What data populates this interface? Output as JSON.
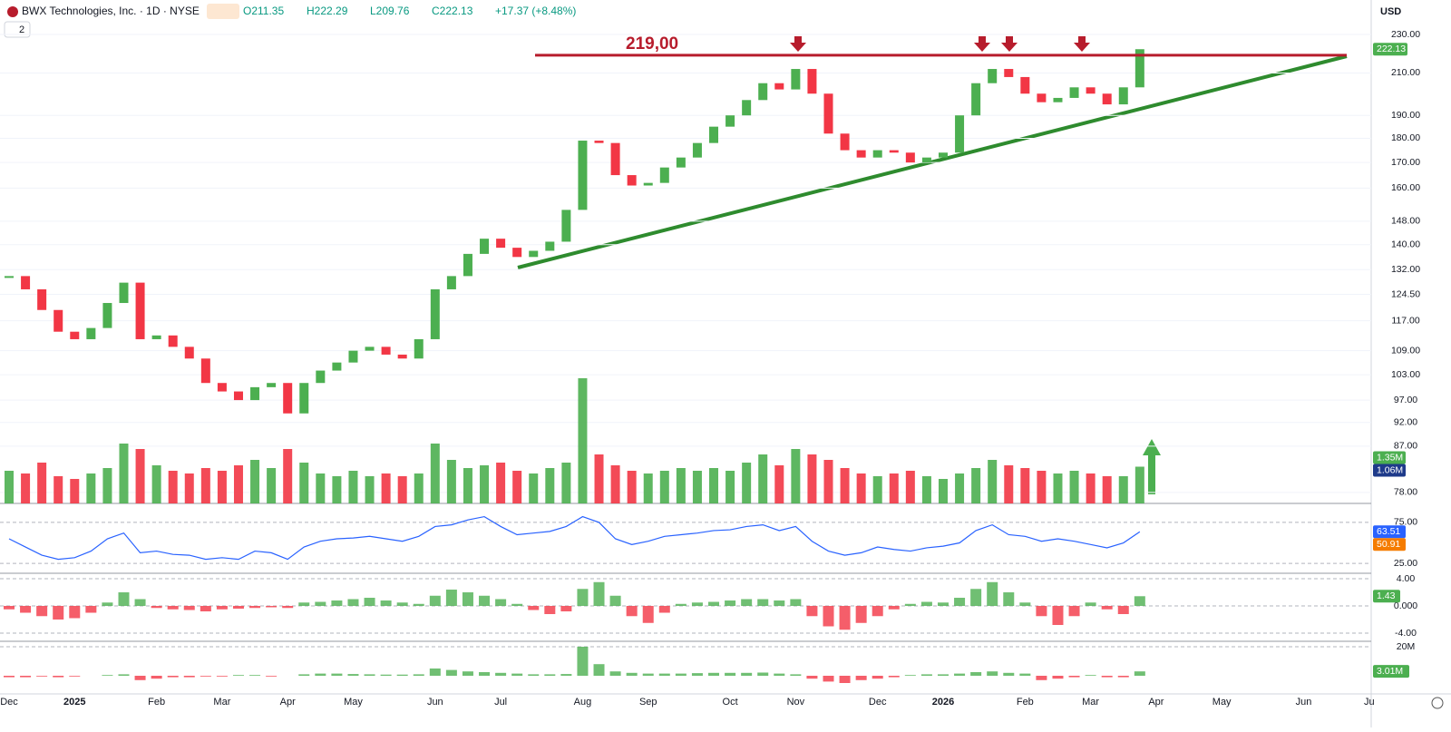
{
  "header": {
    "title": "BWX Technologies, Inc. · 1D · NYSE",
    "ohlc": [
      "O211.35",
      "H222.29",
      "L209.76",
      "C222.13",
      "+17.37 (+8.48%)"
    ],
    "indicators": "2",
    "currency": "USD"
  },
  "chart_data": [
    {
      "type": "candlestick",
      "log": true,
      "up_color": "#4caf50",
      "down_color": "#f23645",
      "categories": [
        "Dec",
        null,
        null,
        null,
        "2025",
        null,
        null,
        null,
        null,
        "Feb",
        null,
        null,
        null,
        "Mar",
        null,
        null,
        null,
        "Apr",
        null,
        null,
        null,
        "May",
        null,
        null,
        null,
        null,
        "Jun",
        null,
        null,
        null,
        "Jul",
        null,
        null,
        null,
        null,
        "Aug",
        null,
        null,
        null,
        "Sep",
        null,
        null,
        null,
        null,
        "Oct",
        null,
        null,
        null,
        "Nov",
        null,
        null,
        null,
        null,
        "Dec",
        null,
        null,
        null,
        "2026",
        null,
        null,
        null,
        null,
        "Feb",
        null,
        null,
        null,
        "Mar",
        null,
        null,
        null,
        "Apr",
        null,
        null,
        null,
        "May",
        null,
        null,
        null,
        null,
        "Jun",
        null,
        null,
        null,
        "Ju"
      ],
      "values": [
        130,
        126,
        120,
        114,
        112,
        115,
        122,
        128,
        112,
        113,
        110,
        107,
        101,
        99,
        97,
        100,
        101,
        94,
        101,
        104,
        106,
        109,
        110,
        108,
        107,
        112,
        126,
        130,
        137,
        142,
        139,
        136,
        138,
        141,
        152,
        179,
        178,
        165,
        161,
        162,
        168,
        172,
        178,
        185,
        190,
        197,
        205,
        202,
        212,
        200,
        182,
        175,
        172,
        175,
        174,
        170,
        172,
        174,
        190,
        205,
        212,
        208,
        200,
        196,
        198,
        203,
        200,
        195,
        203,
        222.13,
        null,
        null,
        null,
        null,
        null,
        null,
        null,
        null,
        null,
        null,
        null,
        null,
        null,
        null
      ],
      "ylim": [
        76,
        249.5
      ],
      "yticks": [
        {
          "value": 78,
          "label": "78.00"
        },
        {
          "value": 87,
          "label": "87.00"
        },
        {
          "value": 92,
          "label": "92.00"
        },
        {
          "value": 97,
          "label": "97.00"
        },
        {
          "value": 103,
          "label": "103.00"
        },
        {
          "value": 109,
          "label": "109.00"
        },
        {
          "value": 117,
          "label": "117.00"
        },
        {
          "value": 124.5,
          "label": "124.50"
        },
        {
          "value": 132,
          "label": "132.00"
        },
        {
          "value": 140,
          "label": "140.00"
        },
        {
          "value": 148,
          "label": "148.00"
        },
        {
          "value": 160,
          "label": "160.00"
        },
        {
          "value": 170,
          "label": "170.00"
        },
        {
          "value": 180,
          "label": "180.00"
        },
        {
          "value": 190,
          "label": "190.00"
        },
        {
          "value": 210,
          "label": "210.00"
        },
        {
          "value": 230,
          "label": "230.00"
        }
      ],
      "last_label": "222.13",
      "resistance": {
        "value": 219,
        "label": "219,00",
        "color": "#b71c2c"
      }
    },
    {
      "type": "bar",
      "values": [
        1.2,
        1.1,
        1.5,
        1.0,
        0.9,
        1.1,
        1.3,
        2.2,
        2.0,
        1.4,
        1.2,
        1.1,
        1.3,
        1.2,
        1.4,
        1.6,
        1.3,
        2.0,
        1.5,
        1.1,
        1.0,
        1.2,
        1.0,
        1.1,
        1.0,
        1.1,
        2.2,
        1.6,
        1.3,
        1.4,
        1.5,
        1.2,
        1.1,
        1.3,
        1.5,
        4.6,
        1.8,
        1.4,
        1.2,
        1.1,
        1.2,
        1.3,
        1.2,
        1.3,
        1.2,
        1.5,
        1.8,
        1.4,
        2.0,
        1.8,
        1.6,
        1.3,
        1.1,
        1.0,
        1.1,
        1.2,
        1.0,
        0.9,
        1.1,
        1.3,
        1.6,
        1.4,
        1.3,
        1.2,
        1.1,
        1.2,
        1.1,
        1.0,
        1.0,
        1.35,
        null,
        null,
        null,
        null,
        null,
        null,
        null,
        null,
        null,
        null,
        null,
        null,
        null,
        null
      ],
      "badges": [
        "1.35M",
        "1.06M"
      ]
    },
    {
      "type": "line",
      "color": "#2962ff",
      "values": [
        55,
        45,
        35,
        30,
        32,
        40,
        55,
        62,
        38,
        40,
        36,
        35,
        30,
        32,
        30,
        40,
        38,
        30,
        45,
        52,
        55,
        56,
        58,
        55,
        52,
        58,
        70,
        72,
        78,
        82,
        70,
        60,
        62,
        64,
        70,
        82,
        75,
        55,
        48,
        52,
        58,
        60,
        62,
        65,
        66,
        70,
        72,
        65,
        70,
        52,
        40,
        35,
        38,
        45,
        42,
        40,
        44,
        46,
        50,
        65,
        72,
        60,
        58,
        52,
        55,
        52,
        48,
        44,
        50,
        63.51,
        null,
        null,
        null,
        null,
        null,
        null,
        null,
        null,
        null,
        null,
        null,
        null,
        null,
        null
      ],
      "ylim": [
        13,
        97
      ],
      "yticks": [
        {
          "value": 75,
          "label": "75.00"
        },
        {
          "value": 25,
          "label": "25.00"
        }
      ],
      "badges": [
        "63.51",
        "50.91"
      ]
    },
    {
      "type": "bar",
      "values": [
        -0.5,
        -1,
        -1.5,
        -2,
        -1.8,
        -1,
        0.5,
        2,
        1,
        -0.3,
        -0.5,
        -0.6,
        -0.8,
        -0.5,
        -0.4,
        -0.3,
        -0.2,
        -0.3,
        0.5,
        0.6,
        0.8,
        1,
        1.2,
        0.8,
        0.5,
        0.3,
        1.5,
        2.4,
        2,
        1.5,
        1,
        0.3,
        -0.6,
        -1.2,
        -0.8,
        2.5,
        3.5,
        1.5,
        -1.5,
        -2.5,
        -1,
        0.3,
        0.5,
        0.6,
        0.8,
        1,
        1,
        0.8,
        1,
        -1.5,
        -3,
        -3.5,
        -2.5,
        -1.5,
        -0.5,
        0.3,
        0.6,
        0.5,
        1.2,
        2.5,
        3.5,
        2,
        0.5,
        -1.5,
        -2.8,
        -1.5,
        0.5,
        -0.5,
        -1.2,
        1.43,
        null,
        null,
        null,
        null,
        null,
        null,
        null,
        null,
        null,
        null,
        null,
        null,
        null,
        null
      ],
      "ylim": [
        -5.2,
        4.67
      ],
      "yticks": [
        {
          "value": 4,
          "label": "4.00"
        },
        {
          "value": 0,
          "label": "0.000"
        },
        {
          "value": -4,
          "label": "-4.00"
        }
      ],
      "badges": [
        "1.43"
      ]
    },
    {
      "type": "bar",
      "values": [
        -1,
        -1,
        -0.5,
        -1,
        -0.5,
        0,
        0.5,
        1,
        -3,
        -2,
        -1,
        -1,
        -0.5,
        -0.5,
        0.5,
        0.5,
        -0.5,
        0,
        1,
        1.5,
        1.5,
        1.2,
        1,
        0.8,
        0.8,
        1,
        5,
        4,
        3,
        2.5,
        2,
        1.5,
        1,
        1,
        1.2,
        20,
        8,
        3,
        2,
        1.5,
        1.5,
        1.5,
        1.8,
        2,
        2,
        2,
        2.2,
        1.5,
        1,
        -2,
        -4,
        -5,
        -3,
        -2,
        -1,
        0.5,
        1,
        1,
        1.5,
        2.5,
        3,
        2,
        1.5,
        -3,
        -2,
        -1,
        0.5,
        -1,
        -1,
        3.01,
        null,
        null,
        null,
        null,
        null,
        null,
        null,
        null,
        null,
        null,
        null,
        null,
        null,
        null
      ],
      "ylim": [
        -12.5,
        23.75
      ],
      "yticks": [
        {
          "value": 20,
          "label": "20M"
        }
      ],
      "badges": [
        "3.01M"
      ]
    }
  ]
}
